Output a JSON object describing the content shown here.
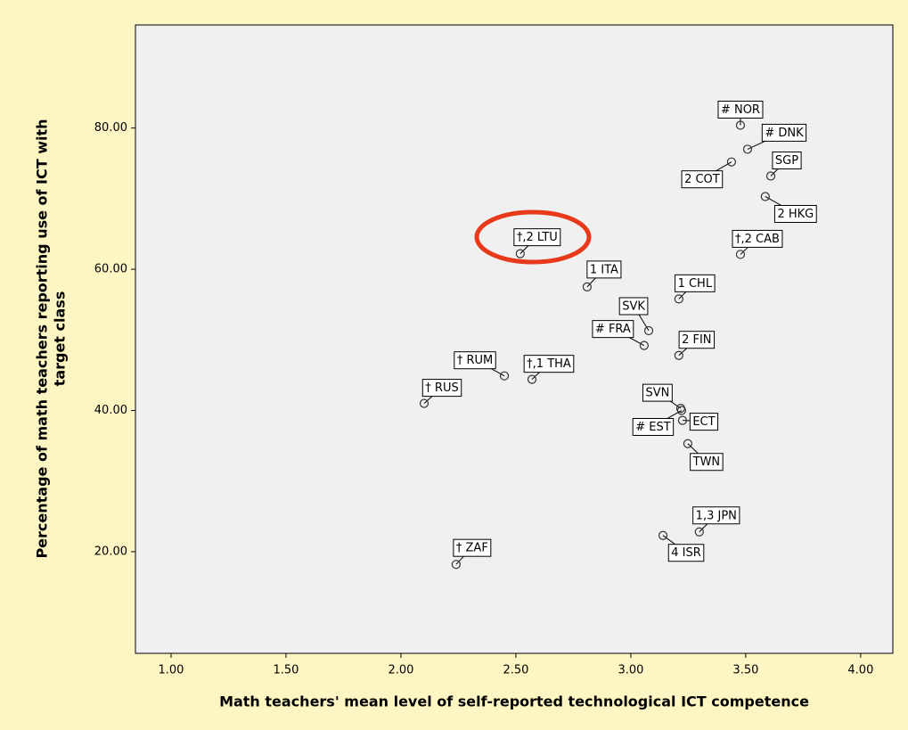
{
  "chart_data": {
    "type": "scatter",
    "xlabel": "Math teachers' mean level of self-reported technological ICT competence",
    "ylabel": [
      "Percentage of math teachers reporting use of ICT with",
      "target class"
    ],
    "xlim": [
      0.845,
      4.14
    ],
    "ylim": [
      5.6,
      94.6
    ],
    "xticks": [
      {
        "value": 1,
        "label": "1.00"
      },
      {
        "value": 1.5,
        "label": "1.50"
      },
      {
        "value": 2,
        "label": "2.00"
      },
      {
        "value": 2.5,
        "label": "2.50"
      },
      {
        "value": 3,
        "label": "3.00"
      },
      {
        "value": 3.5,
        "label": "3.50"
      },
      {
        "value": 4,
        "label": "4.00"
      }
    ],
    "yticks": [
      {
        "value": 20,
        "label": "20.00"
      },
      {
        "value": 40,
        "label": "40.00"
      },
      {
        "value": 60,
        "label": "60.00"
      },
      {
        "value": 80,
        "label": "80.00"
      }
    ],
    "color": "#333333",
    "labels": [
      "# NOR",
      "# DNK",
      "2 COT",
      "SGP",
      "2 HKG",
      "†,2 LTU",
      "†,2 CAB",
      "1 ITA",
      "1 CHL",
      "SVK",
      "# FRA",
      "2 FIN",
      "† RUM",
      "†,1 THA",
      "† RUS",
      "SVN",
      "# EST",
      "ECT",
      "TWN",
      "1,3 JPN",
      "4 ISR",
      "† ZAF"
    ],
    "x": [
      3.477,
      3.508,
      3.438,
      3.609,
      3.585,
      2.519,
      3.477,
      2.81,
      3.209,
      3.078,
      3.058,
      3.209,
      2.45,
      2.57,
      2.101,
      3.217,
      3.221,
      3.225,
      3.248,
      3.298,
      3.14,
      2.24
    ],
    "values": [
      80.4,
      77.0,
      75.2,
      73.2,
      70.3,
      62.2,
      62.1,
      57.5,
      55.8,
      51.3,
      49.2,
      47.8,
      44.9,
      44.4,
      41.0,
      40.3,
      40.0,
      38.6,
      35.3,
      22.8,
      22.3,
      18.2
    ]
  }
}
